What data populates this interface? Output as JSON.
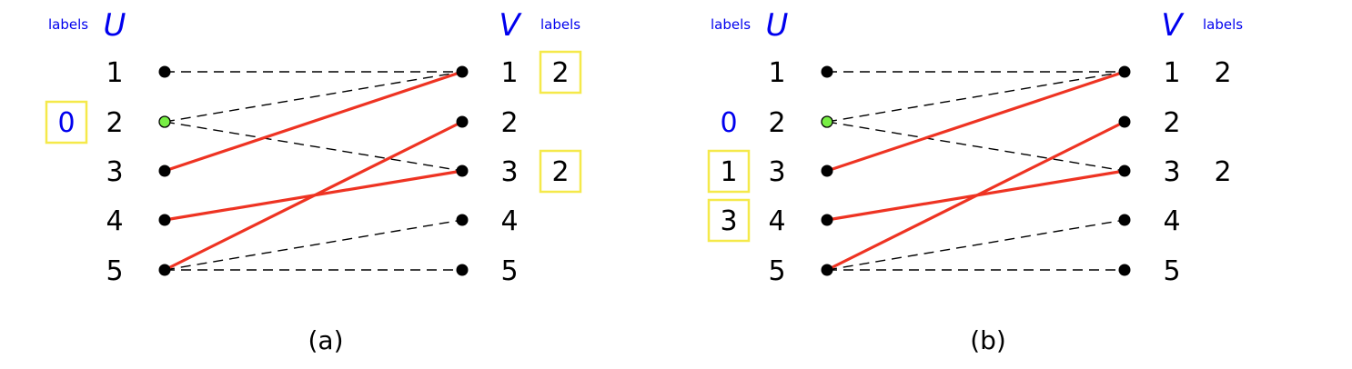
{
  "colors": {
    "matched_edge": "#ee3322",
    "free_vertex": "#77ee44",
    "label_blue": "#0000ee",
    "highlight_box": "#f5e94a"
  },
  "panels": [
    {
      "caption": "(a)",
      "u_header": "U",
      "v_header": "V",
      "u_labels_header": "labels",
      "v_labels_header": "labels",
      "u_vertices": [
        "1",
        "2",
        "3",
        "4",
        "5"
      ],
      "v_vertices": [
        "1",
        "2",
        "3",
        "4",
        "5"
      ],
      "free_vertex": "2",
      "u_labels": [
        {
          "vertex": "2",
          "value": "0",
          "boxed": true,
          "color": "blue"
        }
      ],
      "v_labels": [
        {
          "vertex": "1",
          "value": "2",
          "boxed": true,
          "color": "black"
        },
        {
          "vertex": "3",
          "value": "2",
          "boxed": true,
          "color": "black"
        }
      ],
      "edges": [
        {
          "u": "1",
          "v": "1",
          "style": "dashed"
        },
        {
          "u": "2",
          "v": "1",
          "style": "dashed"
        },
        {
          "u": "2",
          "v": "3",
          "style": "dashed"
        },
        {
          "u": "5",
          "v": "4",
          "style": "dashed"
        },
        {
          "u": "5",
          "v": "5",
          "style": "dashed"
        },
        {
          "u": "3",
          "v": "1",
          "style": "matched"
        },
        {
          "u": "4",
          "v": "3",
          "style": "matched"
        },
        {
          "u": "5",
          "v": "2",
          "style": "matched"
        }
      ]
    },
    {
      "caption": "(b)",
      "u_header": "U",
      "v_header": "V",
      "u_labels_header": "labels",
      "v_labels_header": "labels",
      "u_vertices": [
        "1",
        "2",
        "3",
        "4",
        "5"
      ],
      "v_vertices": [
        "1",
        "2",
        "3",
        "4",
        "5"
      ],
      "free_vertex": "2",
      "u_labels": [
        {
          "vertex": "2",
          "value": "0",
          "boxed": false,
          "color": "blue"
        },
        {
          "vertex": "3",
          "value": "1",
          "boxed": true,
          "color": "black"
        },
        {
          "vertex": "4",
          "value": "3",
          "boxed": true,
          "color": "black"
        }
      ],
      "v_labels": [
        {
          "vertex": "1",
          "value": "2",
          "boxed": false,
          "color": "black"
        },
        {
          "vertex": "3",
          "value": "2",
          "boxed": false,
          "color": "black"
        }
      ],
      "edges": [
        {
          "u": "1",
          "v": "1",
          "style": "dashed"
        },
        {
          "u": "2",
          "v": "1",
          "style": "dashed"
        },
        {
          "u": "2",
          "v": "3",
          "style": "dashed"
        },
        {
          "u": "5",
          "v": "4",
          "style": "dashed"
        },
        {
          "u": "5",
          "v": "5",
          "style": "dashed"
        },
        {
          "u": "3",
          "v": "1",
          "style": "matched"
        },
        {
          "u": "4",
          "v": "3",
          "style": "matched"
        },
        {
          "u": "5",
          "v": "2",
          "style": "matched"
        }
      ]
    }
  ]
}
